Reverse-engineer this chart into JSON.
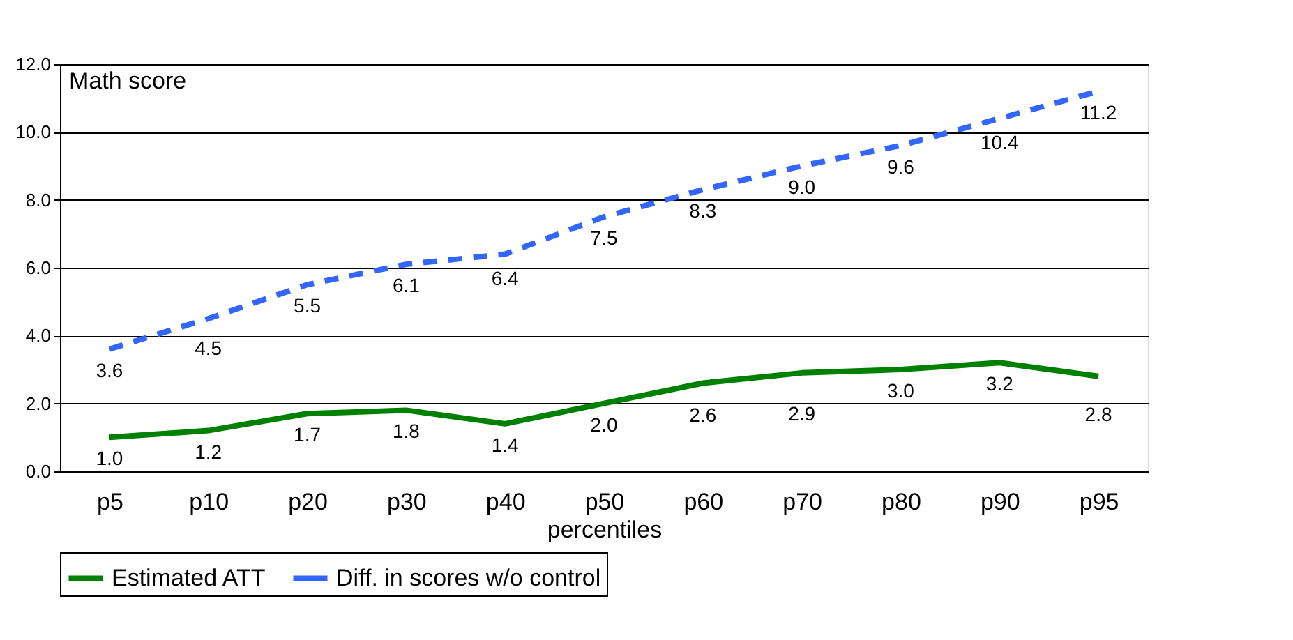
{
  "chart_data": {
    "type": "line",
    "xlabel": "percentiles",
    "ylabel": "Math score",
    "categories": [
      "p5",
      "p10",
      "p20",
      "p30",
      "p40",
      "p50",
      "p60",
      "p70",
      "p80",
      "p90",
      "p95"
    ],
    "series": [
      {
        "name": "Estimated ATT",
        "color": "#008000",
        "line_style": "solid",
        "values": [
          1.0,
          1.2,
          1.7,
          1.8,
          1.4,
          2.0,
          2.6,
          2.9,
          3.0,
          3.2,
          2.8
        ],
        "value_labels": [
          "1.0",
          "1.2",
          "1.7",
          "1.8",
          "1.4",
          "2.0",
          "2.6",
          "2.9",
          "3.0",
          "3.2",
          "2.8"
        ]
      },
      {
        "name": "Diff. in scores w/o control",
        "color": "#3366ff",
        "line_style": "dashed",
        "values": [
          3.6,
          4.5,
          5.5,
          6.1,
          6.4,
          7.5,
          8.3,
          9.0,
          9.6,
          10.4,
          11.2
        ],
        "value_labels": [
          "3.6",
          "4.5",
          "5.5",
          "6.1",
          "6.4",
          "7.5",
          "8.3",
          "9.0",
          "9.6",
          "10.4",
          "11.2"
        ]
      }
    ],
    "ylim": [
      0,
      12
    ],
    "yticks": [
      {
        "value": 0,
        "label": "0.0"
      },
      {
        "value": 2,
        "label": "2.0"
      },
      {
        "value": 4,
        "label": "4.0"
      },
      {
        "value": 6,
        "label": "6.0"
      },
      {
        "value": 8,
        "label": "8.0"
      },
      {
        "value": 10,
        "label": "10.0"
      },
      {
        "value": 12,
        "label": "12.0"
      }
    ],
    "grid": "y",
    "legend": "bottom",
    "marker": "none"
  }
}
